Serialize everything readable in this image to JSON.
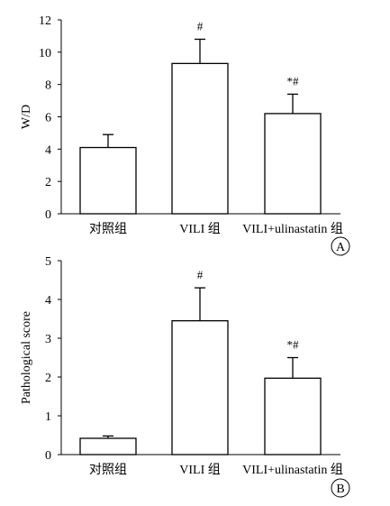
{
  "chart_data": [
    {
      "type": "bar",
      "panel_label": "A",
      "title": "",
      "xlabel": "",
      "ylabel": "W/D",
      "ylim": [
        0,
        12
      ],
      "yticks": [
        0,
        2,
        4,
        6,
        8,
        10,
        12
      ],
      "categories": [
        "对照组",
        "VILI 组",
        "VILI+ulinastatin 组"
      ],
      "values": [
        4.1,
        9.3,
        6.2
      ],
      "error_upper": [
        0.8,
        1.5,
        1.2
      ],
      "annotations": [
        "",
        "#",
        "*#"
      ],
      "grid": false,
      "colors": {
        "bar_fill": "#ffffff",
        "bar_stroke": "#000000"
      }
    },
    {
      "type": "bar",
      "panel_label": "B",
      "title": "",
      "xlabel": "",
      "ylabel": "Pathological score",
      "ylim": [
        0,
        5
      ],
      "yticks": [
        0,
        1,
        2,
        3,
        4,
        5
      ],
      "categories": [
        "对照组",
        "VILI 组",
        "VILI+ulinastatin 组"
      ],
      "values": [
        0.42,
        3.45,
        1.97
      ],
      "error_upper": [
        0.06,
        0.85,
        0.53
      ],
      "annotations": [
        "",
        "#",
        "*#"
      ],
      "grid": false,
      "colors": {
        "bar_fill": "#ffffff",
        "bar_stroke": "#000000"
      }
    }
  ]
}
